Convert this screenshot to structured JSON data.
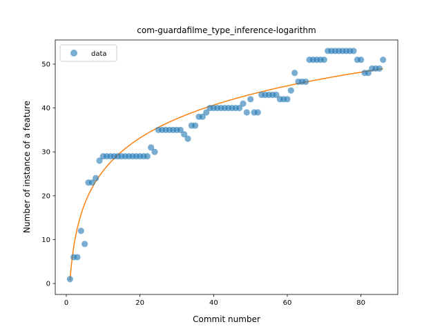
{
  "chart_data": {
    "type": "scatter",
    "title": "com-guardafilme_type_inference-logarithm",
    "xlabel": "Commit number",
    "ylabel": "Number of instance of a feature",
    "xlim": [
      -3,
      90
    ],
    "ylim": [
      -2.5,
      55.5
    ],
    "xticks": [
      0,
      20,
      40,
      60,
      80
    ],
    "yticks": [
      0,
      10,
      20,
      30,
      40,
      50
    ],
    "legend_position": "top-left",
    "colors": {
      "data": "#1f77b4",
      "fit": "#ff7f0e"
    },
    "series": [
      {
        "name": "data",
        "kind": "points",
        "x": [
          1,
          2,
          3,
          4,
          5,
          6,
          7,
          8,
          9,
          10,
          11,
          12,
          13,
          14,
          15,
          16,
          17,
          18,
          19,
          20,
          21,
          22,
          23,
          24,
          25,
          26,
          27,
          28,
          29,
          30,
          31,
          32,
          33,
          34,
          35,
          36,
          37,
          38,
          39,
          40,
          41,
          42,
          43,
          44,
          45,
          46,
          47,
          48,
          49,
          50,
          51,
          52,
          53,
          54,
          55,
          56,
          57,
          58,
          59,
          60,
          61,
          62,
          63,
          64,
          65,
          66,
          67,
          68,
          69,
          70,
          71,
          72,
          73,
          74,
          75,
          76,
          77,
          78,
          79,
          80,
          81,
          82,
          83,
          84,
          85,
          86
        ],
        "y": [
          1,
          6,
          6,
          12,
          9,
          23,
          23,
          24,
          28,
          29,
          29,
          29,
          29,
          29,
          29,
          29,
          29,
          29,
          29,
          29,
          29,
          29,
          31,
          30,
          35,
          35,
          35,
          35,
          35,
          35,
          35,
          34,
          33,
          36,
          36,
          38,
          38,
          39,
          40,
          40,
          40,
          40,
          40,
          40,
          40,
          40,
          40,
          41,
          39,
          42,
          39,
          39,
          43,
          43,
          43,
          43,
          43,
          42,
          42,
          42,
          44,
          48,
          46,
          46,
          46,
          51,
          51,
          51,
          51,
          51,
          53,
          53,
          53,
          53,
          53,
          53,
          53,
          53,
          51,
          51,
          48,
          48,
          49,
          49,
          49,
          51
        ]
      },
      {
        "kind": "line",
        "equation": "y = 0.75 + 10.82 * ln(x)",
        "x_range": [
          1,
          86
        ]
      }
    ]
  }
}
